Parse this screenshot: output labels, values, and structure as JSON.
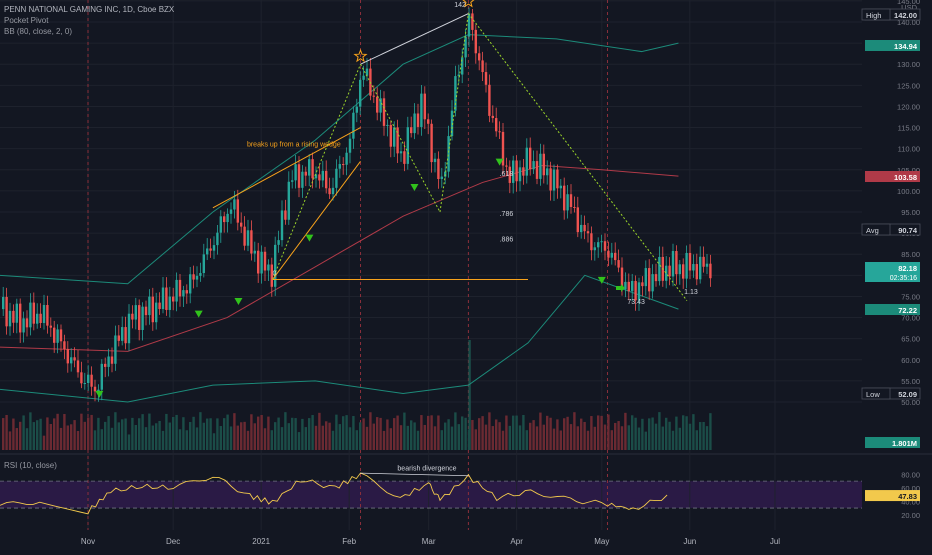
{
  "header": {
    "title": "PENN NATIONAL GAMING INC, 1D, Cboe BZX",
    "indicator1": "Pocket Pivot",
    "indicator2": "BB (80, close, 2, 0)",
    "rsi_label": "RSI (10, close)"
  },
  "colors": {
    "background": "#131722",
    "grid": "#1e222d",
    "up": "#26a69a",
    "down": "#ef5350",
    "bb": "#1c8b7a",
    "ma": "#b03a48",
    "annotation_orange": "#f7a21b",
    "fib_green": "#9bd42a",
    "triangle_green": "#31c21c",
    "rsi_line": "#f2c94c",
    "rsi_fill": "#2a1a45"
  },
  "chart_data": [
    {
      "type": "candlestick",
      "title": "PENN NATIONAL GAMING INC, 1D, Cboe BZX",
      "currency_label": "USD",
      "y_axis_ticks": [
        145,
        140,
        135,
        130,
        125,
        120,
        115,
        110,
        105,
        100,
        95,
        90,
        85,
        80,
        75,
        70,
        65,
        60,
        55,
        50
      ],
      "ylim": [
        50,
        145
      ],
      "x_axis_labels": [
        "Nov",
        "Dec",
        "2021",
        "Feb",
        "Mar",
        "Apr",
        "May",
        "Jun",
        "Jul"
      ],
      "price_labels": [
        {
          "label": "High",
          "value": "142.00",
          "color": "#131722",
          "text_color": "#d1d4dc",
          "border": true
        },
        {
          "label": "",
          "value": "134.94",
          "color": "#1c8b7a",
          "text_color": "#ffffff"
        },
        {
          "label": "",
          "value": "103.58",
          "color": "#b03a48",
          "text_color": "#ffffff"
        },
        {
          "label": "Avg",
          "value": "90.74",
          "color": "#131722",
          "text_color": "#d1d4dc",
          "border": true
        },
        {
          "label": "",
          "value": "82.18",
          "sub": "02:35:16",
          "color": "#26a69a",
          "text_color": "#ffffff"
        },
        {
          "label": "",
          "value": "72.22",
          "color": "#1c8b7a",
          "text_color": "#ffffff"
        },
        {
          "label": "Low",
          "value": "52.09",
          "color": "#131722",
          "text_color": "#d1d4dc",
          "border": true
        },
        {
          "label": "",
          "value": "1.801M",
          "color": "#1c8b7a",
          "text_color": "#ffffff"
        }
      ],
      "annotations": [
        {
          "text": "breaks up from a rising wedge",
          "x": "2021-01-27",
          "y": 110
        },
        {
          "text": "142",
          "x": "2021-03-15",
          "y": 142
        },
        {
          "text": "1.272",
          "x": "2021-03-24",
          "y": 143
        },
        {
          "text": ".618",
          "x": "2021-03-30",
          "y": 103
        },
        {
          "text": ".786",
          "x": "2021-03-30",
          "y": 93
        },
        {
          "text": ".886",
          "x": "2021-03-30",
          "y": 87
        },
        {
          "text": "0",
          "x": "2021-01-05",
          "y": 79
        },
        {
          "text": "73.43",
          "x": "2021-05-12",
          "y": 71
        },
        {
          "text": "1.13",
          "x": "2021-05-28",
          "y": 75
        }
      ],
      "close_path": [
        {
          "x": "2020-10-01",
          "y": 72
        },
        {
          "x": "2020-10-08",
          "y": 69
        },
        {
          "x": "2020-10-15",
          "y": 71
        },
        {
          "x": "2020-10-22",
          "y": 64
        },
        {
          "x": "2020-10-29",
          "y": 56
        },
        {
          "x": "2020-11-03",
          "y": 53
        },
        {
          "x": "2020-11-09",
          "y": 62
        },
        {
          "x": "2020-11-16",
          "y": 70
        },
        {
          "x": "2020-11-23",
          "y": 72
        },
        {
          "x": "2020-11-30",
          "y": 75
        },
        {
          "x": "2020-12-07",
          "y": 78
        },
        {
          "x": "2020-12-14",
          "y": 87
        },
        {
          "x": "2020-12-21",
          "y": 97
        },
        {
          "x": "2020-12-28",
          "y": 86
        },
        {
          "x": "2021-01-04",
          "y": 80
        },
        {
          "x": "2021-01-11",
          "y": 103
        },
        {
          "x": "2021-01-19",
          "y": 105
        },
        {
          "x": "2021-01-25",
          "y": 100
        },
        {
          "x": "2021-02-01",
          "y": 112
        },
        {
          "x": "2021-02-05",
          "y": 129
        },
        {
          "x": "2021-02-12",
          "y": 118
        },
        {
          "x": "2021-02-19",
          "y": 108
        },
        {
          "x": "2021-02-26",
          "y": 121
        },
        {
          "x": "2021-03-05",
          "y": 100
        },
        {
          "x": "2021-03-10",
          "y": 125
        },
        {
          "x": "2021-03-15",
          "y": 141
        },
        {
          "x": "2021-03-22",
          "y": 120
        },
        {
          "x": "2021-03-29",
          "y": 103
        },
        {
          "x": "2021-04-05",
          "y": 107
        },
        {
          "x": "2021-04-12",
          "y": 104
        },
        {
          "x": "2021-04-19",
          "y": 97
        },
        {
          "x": "2021-04-26",
          "y": 88
        },
        {
          "x": "2021-05-03",
          "y": 86
        },
        {
          "x": "2021-05-10",
          "y": 76
        },
        {
          "x": "2021-05-17",
          "y": 79
        },
        {
          "x": "2021-05-24",
          "y": 82
        }
      ],
      "rsi": {
        "type": "line",
        "y_axis_ticks": [
          80,
          60,
          40,
          20
        ],
        "levels": [
          70,
          30
        ],
        "current": "47.83",
        "annotation": "bearish divergence",
        "path": [
          {
            "x": "2020-10-01",
            "y": 34
          },
          {
            "x": "2020-10-15",
            "y": 40
          },
          {
            "x": "2020-11-01",
            "y": 25
          },
          {
            "x": "2020-11-09",
            "y": 55
          },
          {
            "x": "2020-11-20",
            "y": 62
          },
          {
            "x": "2020-12-01",
            "y": 60
          },
          {
            "x": "2020-12-15",
            "y": 78
          },
          {
            "x": "2020-12-28",
            "y": 48
          },
          {
            "x": "2021-01-05",
            "y": 38
          },
          {
            "x": "2021-01-15",
            "y": 72
          },
          {
            "x": "2021-01-27",
            "y": 60
          },
          {
            "x": "2021-02-05",
            "y": 80
          },
          {
            "x": "2021-02-19",
            "y": 45
          },
          {
            "x": "2021-03-01",
            "y": 66
          },
          {
            "x": "2021-03-05",
            "y": 42
          },
          {
            "x": "2021-03-15",
            "y": 77
          },
          {
            "x": "2021-03-25",
            "y": 45
          },
          {
            "x": "2021-04-06",
            "y": 55
          },
          {
            "x": "2021-04-20",
            "y": 42
          },
          {
            "x": "2021-05-03",
            "y": 36
          },
          {
            "x": "2021-05-12",
            "y": 28
          },
          {
            "x": "2021-05-24",
            "y": 48
          }
        ]
      }
    }
  ]
}
